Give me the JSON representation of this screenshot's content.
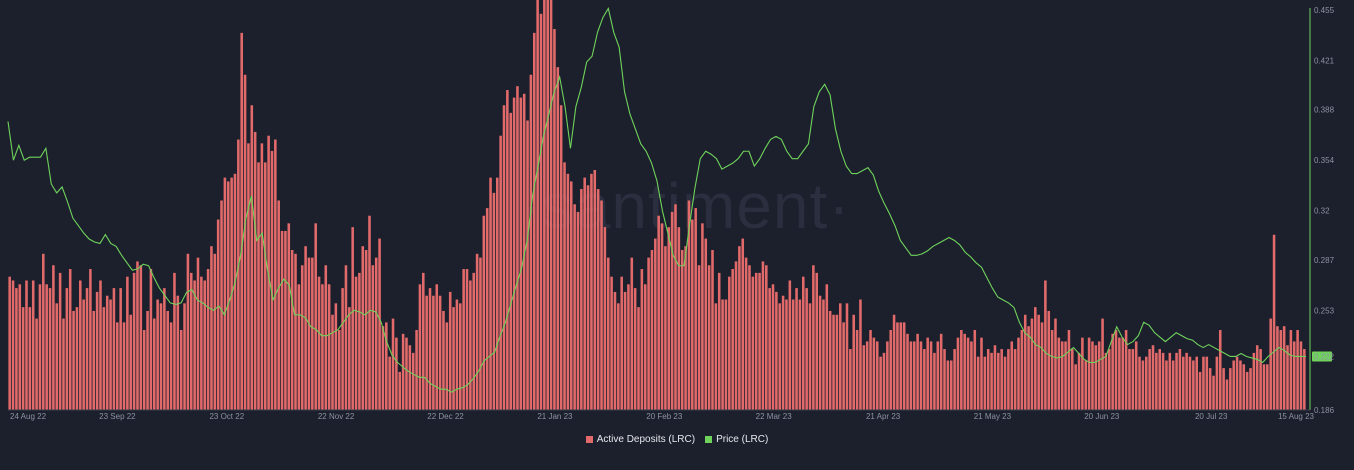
{
  "watermark": "·santiment·",
  "colors": {
    "background": "#1c1f2c",
    "bar": "#e26a6a",
    "line": "#6fd35b",
    "price_badge_bg": "#6fd35b",
    "price_badge_text": "#1c1f2c"
  },
  "chart_data": {
    "type": "bar",
    "x_start": "2022-08-24",
    "x_end": "2023-08-15",
    "x_ticks": [
      "24 Aug 22",
      "23 Sep 22",
      "23 Oct 22",
      "22 Nov 22",
      "22 Dec 22",
      "21 Jan 23",
      "20 Feb 23",
      "22 Mar 23",
      "21 Apr 23",
      "21 May 23",
      "20 Jun 23",
      "20 Jul 23",
      "15 Aug 23"
    ],
    "y_right_ticks": [
      "0.455",
      "0.421",
      "0.388",
      "0.354",
      "0.32",
      "0.287",
      "0.253",
      "0.222",
      "0.186"
    ],
    "y_right_range": [
      0.186,
      0.455
    ],
    "current_price_label": "0.222",
    "grid": false,
    "legend_position": "bottom-center",
    "series": [
      {
        "name": "Active Deposits (LRC)",
        "type": "bar",
        "values": [
          35,
          34,
          32,
          33,
          27,
          34,
          27,
          34,
          24,
          33,
          41,
          33,
          32,
          38,
          28,
          36,
          24,
          32,
          37,
          26,
          27,
          34,
          29,
          32,
          37,
          26,
          31,
          34,
          27,
          30,
          29,
          32,
          23,
          32,
          23,
          35,
          25,
          36,
          39,
          38,
          21,
          26,
          37,
          24,
          29,
          28,
          32,
          26,
          23,
          36,
          30,
          21,
          28,
          41,
          36,
          34,
          40,
          35,
          34,
          37,
          43,
          41,
          50,
          55,
          61,
          60,
          61,
          62,
          71,
          99,
          88,
          70,
          80,
          73,
          65,
          70,
          65,
          72,
          68,
          71,
          55,
          47,
          47,
          49,
          42,
          41,
          33,
          38,
          43,
          40,
          40,
          49,
          35,
          33,
          38,
          33,
          25,
          28,
          21,
          32,
          38,
          27,
          48,
          35,
          36,
          43,
          42,
          51,
          38,
          40,
          45,
          22,
          23,
          14,
          24,
          19,
          10,
          20,
          19,
          17,
          15,
          21,
          33,
          36,
          30,
          32,
          30,
          33,
          30,
          26,
          23,
          31,
          27,
          29,
          28,
          37,
          37,
          34,
          36,
          41,
          40,
          51,
          53,
          61,
          57,
          61,
          72,
          80,
          84,
          78,
          82,
          85,
          82,
          83,
          76,
          88,
          99,
          108,
          104,
          117,
          121,
          116,
          100,
          90,
          80,
          65,
          62,
          60,
          54,
          52,
          58,
          61,
          59,
          62,
          63,
          58,
          55,
          48,
          40,
          35,
          31,
          28,
          35,
          31,
          33,
          40,
          32,
          27,
          37,
          33,
          40,
          42,
          45,
          51,
          49,
          43,
          48,
          52,
          54,
          48,
          42,
          43,
          55,
          50,
          53,
          38,
          49,
          45,
          38,
          42,
          28,
          36,
          29,
          29,
          35,
          37,
          39,
          43,
          45,
          40,
          38,
          35,
          36,
          36,
          39,
          38,
          32,
          33,
          31,
          28,
          30,
          29,
          34,
          29,
          32,
          29,
          35,
          32,
          28,
          38,
          36,
          30,
          29,
          33,
          26,
          25,
          25,
          28,
          23,
          28,
          16,
          25,
          21,
          29,
          17,
          18,
          21,
          19,
          18,
          14,
          15,
          18,
          21,
          25,
          23,
          23,
          23,
          20,
          18,
          18,
          20,
          18,
          16,
          19,
          18,
          15,
          18,
          20,
          16,
          13,
          13,
          16,
          19,
          21,
          20,
          19,
          18,
          21,
          14,
          19,
          14,
          16,
          15,
          17,
          15,
          16,
          14,
          16,
          18,
          16,
          19,
          21,
          25,
          22,
          24,
          27,
          25,
          23,
          34,
          26,
          21,
          24,
          19,
          18,
          18,
          21,
          16,
          12,
          15,
          19,
          13,
          19,
          18,
          17,
          18,
          24,
          15,
          16,
          20,
          21,
          19,
          19,
          21,
          16,
          16,
          18,
          14,
          13,
          14,
          16,
          17,
          15,
          16,
          15,
          13,
          15,
          13,
          15,
          16,
          14,
          15,
          14,
          13,
          14,
          10,
          14,
          14,
          11,
          9,
          14,
          21,
          11,
          8,
          11,
          13,
          14,
          13,
          12,
          10,
          11,
          15,
          17,
          16,
          12,
          12,
          24,
          46,
          22,
          21,
          22,
          17,
          21,
          18,
          21,
          18,
          16
        ]
      },
      {
        "name": "Price (LRC)",
        "type": "line",
        "values": [
          0.38,
          0.354,
          0.364,
          0.354,
          0.356,
          0.356,
          0.356,
          0.362,
          0.338,
          0.332,
          0.336,
          0.326,
          0.315,
          0.31,
          0.305,
          0.301,
          0.299,
          0.298,
          0.304,
          0.298,
          0.296,
          0.29,
          0.285,
          0.28,
          0.281,
          0.284,
          0.283,
          0.275,
          0.268,
          0.263,
          0.258,
          0.257,
          0.258,
          0.265,
          0.267,
          0.26,
          0.258,
          0.255,
          0.253,
          0.256,
          0.25,
          0.26,
          0.272,
          0.29,
          0.315,
          0.33,
          0.3,
          0.305,
          0.28,
          0.26,
          0.268,
          0.274,
          0.27,
          0.25,
          0.25,
          0.248,
          0.242,
          0.24,
          0.236,
          0.236,
          0.238,
          0.24,
          0.245,
          0.25,
          0.253,
          0.252,
          0.25,
          0.253,
          0.252,
          0.245,
          0.232,
          0.223,
          0.218,
          0.215,
          0.212,
          0.21,
          0.208,
          0.208,
          0.204,
          0.202,
          0.2,
          0.2,
          0.198,
          0.2,
          0.201,
          0.203,
          0.207,
          0.212,
          0.219,
          0.222,
          0.225,
          0.236,
          0.245,
          0.258,
          0.27,
          0.282,
          0.3,
          0.33,
          0.35,
          0.37,
          0.385,
          0.4,
          0.41,
          0.39,
          0.362,
          0.39,
          0.403,
          0.42,
          0.424,
          0.44,
          0.45,
          0.456,
          0.44,
          0.43,
          0.4,
          0.385,
          0.375,
          0.365,
          0.36,
          0.352,
          0.34,
          0.32,
          0.305,
          0.29,
          0.283,
          0.283,
          0.31,
          0.335,
          0.355,
          0.36,
          0.358,
          0.355,
          0.348,
          0.35,
          0.352,
          0.355,
          0.36,
          0.36,
          0.35,
          0.355,
          0.362,
          0.368,
          0.37,
          0.368,
          0.36,
          0.355,
          0.355,
          0.36,
          0.365,
          0.39,
          0.4,
          0.405,
          0.398,
          0.375,
          0.36,
          0.35,
          0.345,
          0.345,
          0.347,
          0.349,
          0.344,
          0.333,
          0.325,
          0.318,
          0.31,
          0.3,
          0.295,
          0.29,
          0.29,
          0.291,
          0.293,
          0.296,
          0.298,
          0.3,
          0.302,
          0.3,
          0.297,
          0.292,
          0.289,
          0.285,
          0.282,
          0.275,
          0.268,
          0.262,
          0.26,
          0.258,
          0.255,
          0.245,
          0.238,
          0.235,
          0.23,
          0.228,
          0.224,
          0.222,
          0.221,
          0.222,
          0.225,
          0.228,
          0.224,
          0.22,
          0.218,
          0.218,
          0.22,
          0.222,
          0.232,
          0.242,
          0.235,
          0.23,
          0.232,
          0.236,
          0.245,
          0.243,
          0.238,
          0.235,
          0.232,
          0.235,
          0.238,
          0.236,
          0.234,
          0.233,
          0.23,
          0.228,
          0.23,
          0.228,
          0.226,
          0.224,
          0.222,
          0.222,
          0.224,
          0.222,
          0.221,
          0.22,
          0.218,
          0.222,
          0.225,
          0.228,
          0.226,
          0.223,
          0.222,
          0.222,
          0.222
        ]
      }
    ]
  },
  "legend": {
    "deposits_label": "Active Deposits (LRC)",
    "price_label": "Price (LRC)"
  }
}
